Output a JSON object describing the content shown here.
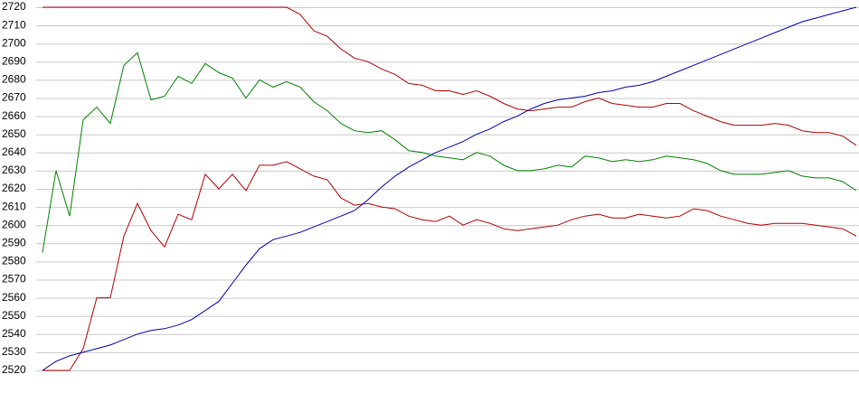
{
  "chart_data": {
    "type": "line",
    "ylim": [
      2520,
      2720
    ],
    "yticks": [
      2520,
      2530,
      2540,
      2550,
      2560,
      2570,
      2580,
      2590,
      2600,
      2610,
      2620,
      2630,
      2640,
      2650,
      2660,
      2670,
      2680,
      2690,
      2700,
      2710,
      2720
    ],
    "grid": true,
    "series": [
      {
        "color": "#b00000",
        "values": [
          2720,
          2720,
          2720,
          2720,
          2720,
          2720,
          2720,
          2720,
          2720,
          2720,
          2720,
          2720,
          2720,
          2720,
          2720,
          2720,
          2720,
          2720,
          2720,
          2716,
          2707,
          2704,
          2697,
          2692,
          2690,
          2686,
          2683,
          2678,
          2677,
          2674,
          2674,
          2672,
          2674,
          2671,
          2667,
          2664,
          2663,
          2664,
          2665,
          2665,
          2668,
          2670,
          2667,
          2666,
          2665,
          2665,
          2667,
          2667,
          2663,
          2660,
          2657,
          2655,
          2655,
          2655,
          2656,
          2655,
          2652,
          2651,
          2651,
          2649,
          2644
        ]
      },
      {
        "color": "#008000",
        "values": [
          2585,
          2630,
          2605,
          2658,
          2665,
          2656,
          2688,
          2695,
          2669,
          2671,
          2682,
          2678,
          2689,
          2684,
          2681,
          2670,
          2680,
          2676,
          2679,
          2676,
          2668,
          2663,
          2656,
          2652,
          2651,
          2652,
          2647,
          2641,
          2640,
          2638,
          2637,
          2636,
          2640,
          2638,
          2633,
          2630,
          2630,
          2631,
          2633,
          2632,
          2638,
          2637,
          2635,
          2636,
          2635,
          2636,
          2638,
          2637,
          2636,
          2634,
          2630,
          2628,
          2628,
          2628,
          2629,
          2630,
          2627,
          2626,
          2626,
          2624,
          2619
        ]
      },
      {
        "color": "#b00000",
        "values": [
          2520,
          2520,
          2520,
          2532,
          2560,
          2560,
          2594,
          2612,
          2597,
          2588,
          2606,
          2603,
          2628,
          2620,
          2628,
          2619,
          2633,
          2633,
          2635,
          2631,
          2627,
          2625,
          2615,
          2611,
          2612,
          2610,
          2609,
          2605,
          2603,
          2602,
          2605,
          2600,
          2603,
          2601,
          2598,
          2597,
          2598,
          2599,
          2600,
          2603,
          2605,
          2606,
          2604,
          2604,
          2606,
          2605,
          2604,
          2605,
          2609,
          2608,
          2605,
          2603,
          2601,
          2600,
          2601,
          2601,
          2601,
          2600,
          2599,
          2598,
          2594
        ]
      },
      {
        "color": "#0000b0",
        "values": [
          2520,
          2525,
          2528,
          2530,
          2532,
          2534,
          2537,
          2540,
          2542,
          2543,
          2545,
          2548,
          2553,
          2558,
          2568,
          2578,
          2587,
          2592,
          2594,
          2596,
          2599,
          2602,
          2605,
          2608,
          2614,
          2621,
          2627,
          2632,
          2636,
          2640,
          2643,
          2646,
          2650,
          2653,
          2657,
          2660,
          2664,
          2667,
          2669,
          2670,
          2671,
          2673,
          2674,
          2676,
          2677,
          2679,
          2682,
          2685,
          2688,
          2691,
          2694,
          2697,
          2700,
          2703,
          2706,
          2709,
          2712,
          2714,
          2716,
          2718,
          2720
        ]
      }
    ]
  }
}
